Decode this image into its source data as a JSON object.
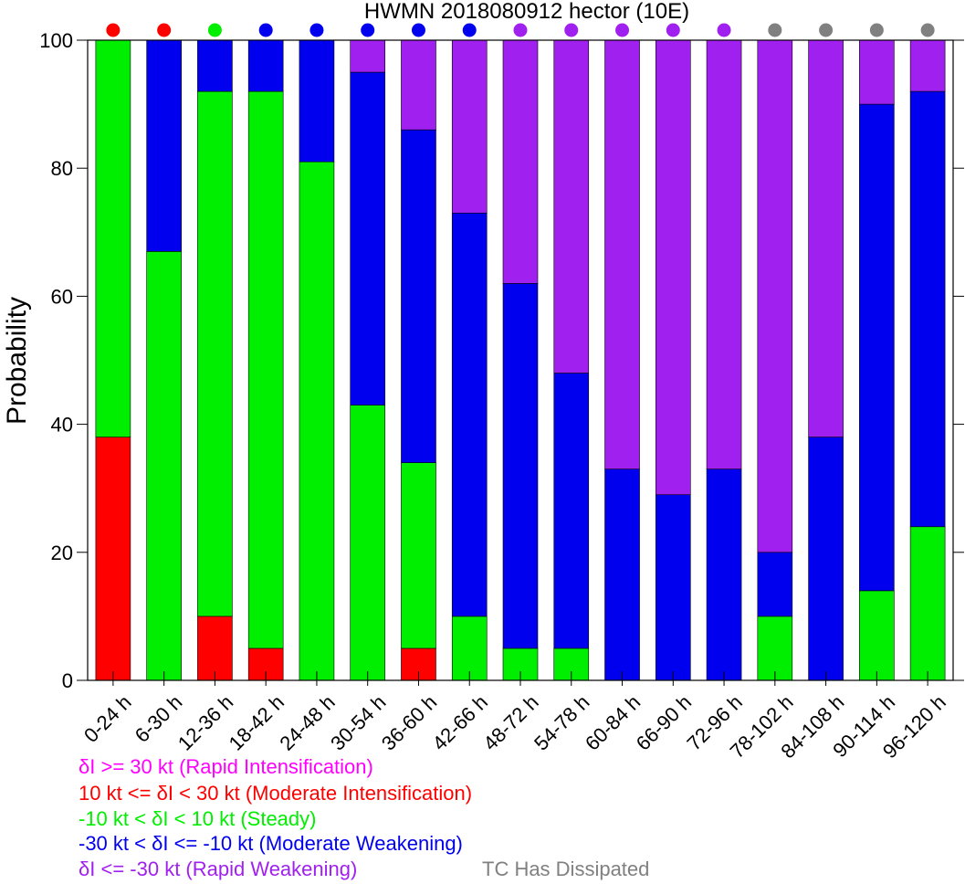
{
  "chart_data": {
    "type": "bar",
    "stacked": true,
    "title": "HWMN 2018080912 hector (10E)",
    "xlabel": "",
    "ylabel": "Probability",
    "ylim": [
      0,
      100
    ],
    "yticks": [
      "0",
      "20",
      "40",
      "60",
      "80",
      "100"
    ],
    "grid": false,
    "categories": [
      "0-24 h",
      "6-30 h",
      "12-36 h",
      "18-42 h",
      "24-48 h",
      "30-54 h",
      "36-60 h",
      "42-66 h",
      "48-72 h",
      "54-78 h",
      "60-84 h",
      "66-90 h",
      "72-96 h",
      "78-102 h",
      "84-108 h",
      "90-114 h",
      "96-120 h"
    ],
    "series": [
      {
        "key": "rapid_intensification",
        "color": "#ff00ff",
        "values": [
          0,
          0,
          0,
          0,
          0,
          0,
          0,
          0,
          0,
          0,
          0,
          0,
          0,
          0,
          0,
          0,
          0
        ]
      },
      {
        "key": "moderate_intensification",
        "color": "#ff0000",
        "values": [
          38,
          0,
          10,
          5,
          0,
          0,
          5,
          0,
          0,
          0,
          0,
          0,
          0,
          0,
          0,
          0,
          0
        ]
      },
      {
        "key": "steady",
        "color": "#00ee00",
        "values": [
          62,
          67,
          82,
          87,
          81,
          43,
          29,
          10,
          5,
          5,
          0,
          0,
          0,
          10,
          0,
          14,
          24
        ]
      },
      {
        "key": "moderate_weakening",
        "color": "#0000ee",
        "values": [
          0,
          33,
          8,
          8,
          19,
          52,
          52,
          63,
          57,
          43,
          33,
          29,
          33,
          10,
          38,
          76,
          68
        ]
      },
      {
        "key": "rapid_weakening",
        "color": "#a020f0",
        "values": [
          0,
          0,
          0,
          0,
          0,
          5,
          14,
          27,
          38,
          52,
          67,
          71,
          67,
          80,
          62,
          10,
          8
        ]
      }
    ],
    "top_markers": [
      "#ff0000",
      "#ff0000",
      "#00ee00",
      "#0000ee",
      "#0000ee",
      "#0000ee",
      "#0000ee",
      "#0000ee",
      "#a020f0",
      "#a020f0",
      "#a020f0",
      "#a020f0",
      "#a020f0",
      "#808080",
      "#808080",
      "#808080",
      "#808080"
    ],
    "legend": [
      {
        "label": "δI >= 30 kt (Rapid Intensification)",
        "color": "#ff00ff"
      },
      {
        "label": "10 kt <= δI < 30 kt (Moderate Intensification)",
        "color": "#ff0000"
      },
      {
        "label": "-10 kt < δI < 10 kt (Steady)",
        "color": "#00ee00"
      },
      {
        "label": "-30 kt < δI <= -10 kt (Moderate Weakening)",
        "color": "#0000ee"
      },
      {
        "label": "δI <= -30 kt (Rapid Weakening)",
        "color": "#a020f0"
      }
    ],
    "legend_extra": {
      "label": "TC Has Dissipated",
      "color": "#808080"
    },
    "legend_placement": "bottom-left"
  }
}
